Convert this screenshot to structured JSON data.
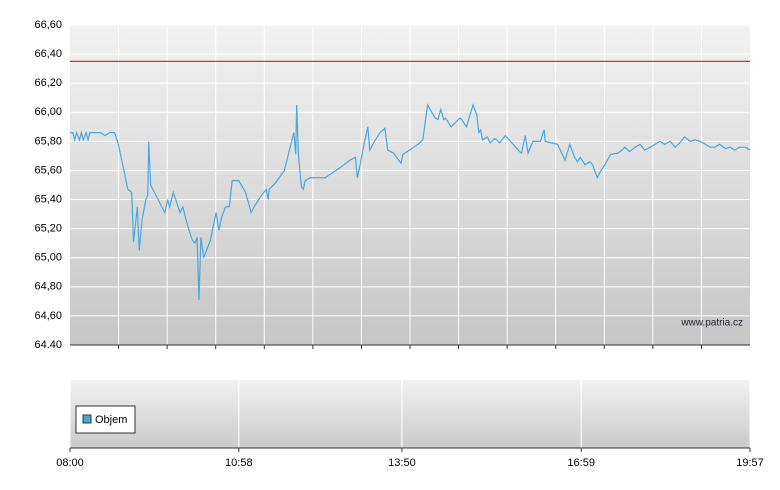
{
  "chart_data": {
    "type": "line",
    "x": [
      480,
      483,
      485,
      487,
      490,
      492,
      494,
      497,
      499,
      501,
      512,
      517,
      522,
      527,
      531,
      541,
      545,
      547,
      551,
      553,
      556,
      560,
      562,
      563,
      565,
      580,
      583,
      585,
      589,
      596,
      599,
      602,
      605,
      609,
      612,
      614,
      616,
      618,
      621,
      628,
      634,
      637,
      640,
      644,
      648,
      651,
      658,
      665,
      669,
      671,
      675,
      682,
      687,
      689,
      690,
      696,
      706,
      716,
      718,
      719,
      721,
      724,
      726,
      728,
      733,
      735,
      749,
      765,
      775,
      781,
      783,
      786,
      790,
      794,
      796,
      802,
      807,
      812,
      815,
      821,
      829,
      831,
      838,
      849,
      852,
      857,
      865,
      868,
      871,
      874,
      876,
      882,
      891,
      893,
      898,
      905,
      909,
      911,
      913,
      915,
      920,
      923,
      928,
      933,
      939,
      943,
      954,
      956,
      960,
      963,
      968,
      976,
      980,
      981,
      994,
      997,
      1002,
      1007,
      1012,
      1015,
      1018,
      1023,
      1028,
      1031,
      1036,
      1039,
      1044,
      1050,
      1058,
      1062,
      1065,
      1070,
      1076,
      1081,
      1086,
      1092,
      1097,
      1102,
      1107,
      1113,
      1118,
      1123,
      1128,
      1134,
      1139,
      1144,
      1150,
      1155,
      1160,
      1165,
      1171,
      1176,
      1181,
      1186,
      1192,
      1197
    ],
    "values": [
      65.86,
      65.86,
      65.81,
      65.86,
      65.81,
      65.86,
      65.81,
      65.86,
      65.81,
      65.86,
      65.86,
      65.84,
      65.86,
      65.86,
      65.78,
      65.47,
      65.45,
      65.11,
      65.35,
      65.05,
      65.26,
      65.4,
      65.43,
      65.8,
      65.5,
      65.31,
      65.4,
      65.35,
      65.45,
      65.31,
      65.35,
      65.27,
      65.2,
      65.12,
      65.1,
      65.14,
      64.71,
      65.14,
      65.0,
      65.12,
      65.31,
      65.19,
      65.28,
      65.35,
      65.35,
      65.53,
      65.53,
      65.45,
      65.36,
      65.31,
      65.36,
      65.43,
      65.47,
      65.4,
      65.47,
      65.51,
      65.6,
      65.86,
      65.71,
      66.05,
      65.69,
      65.49,
      65.47,
      65.53,
      65.55,
      65.55,
      65.55,
      65.62,
      65.67,
      65.69,
      65.55,
      65.64,
      65.78,
      65.9,
      65.74,
      65.81,
      65.86,
      65.89,
      65.74,
      65.72,
      65.65,
      65.71,
      65.74,
      65.79,
      65.81,
      66.05,
      65.96,
      65.95,
      66.02,
      65.95,
      65.96,
      65.9,
      65.96,
      65.95,
      65.9,
      66.05,
      65.98,
      65.86,
      65.88,
      65.81,
      65.83,
      65.79,
      65.82,
      65.79,
      65.84,
      65.81,
      65.73,
      65.72,
      65.84,
      65.72,
      65.8,
      65.8,
      65.88,
      65.8,
      65.78,
      65.74,
      65.67,
      65.78,
      65.69,
      65.66,
      65.69,
      65.64,
      65.66,
      65.64,
      65.55,
      65.59,
      65.64,
      65.71,
      65.72,
      65.74,
      65.76,
      65.73,
      65.76,
      65.78,
      65.74,
      65.76,
      65.78,
      65.8,
      65.78,
      65.8,
      65.76,
      65.79,
      65.83,
      65.8,
      65.81,
      65.8,
      65.78,
      65.76,
      65.76,
      65.78,
      65.75,
      65.76,
      65.74,
      65.76,
      65.76,
      65.74
    ],
    "color": "#4aa8d8",
    "reference_line": 66.35,
    "reference_color": "#e03020",
    "xlim": [
      480,
      1197
    ],
    "xticks": [
      {
        "value": 480,
        "label": "08:00"
      },
      {
        "value": 658,
        "label": "10:58"
      },
      {
        "value": 830,
        "label": "13:50"
      },
      {
        "value": 1019,
        "label": "16:59"
      },
      {
        "value": 1197,
        "label": "19:57"
      }
    ],
    "ylim": [
      64.4,
      66.6
    ],
    "yticks": [
      {
        "value": 64.4,
        "label": "64.40"
      },
      {
        "value": 64.6,
        "label": "64,60"
      },
      {
        "value": 64.8,
        "label": "64,80"
      },
      {
        "value": 65.0,
        "label": "65,00"
      },
      {
        "value": 65.2,
        "label": "65,20"
      },
      {
        "value": 65.4,
        "label": "65,40"
      },
      {
        "value": 65.6,
        "label": "65,60"
      },
      {
        "value": 65.8,
        "label": "65,80"
      },
      {
        "value": 66.0,
        "label": "66,00"
      },
      {
        "value": 66.2,
        "label": "66,20"
      },
      {
        "value": 66.4,
        "label": "66,40"
      },
      {
        "value": 66.6,
        "label": "66,60"
      }
    ],
    "grid": true,
    "watermark": "www.patria.cz",
    "volume_legend": {
      "name": "Objem",
      "color": "#4aa8d8"
    }
  }
}
